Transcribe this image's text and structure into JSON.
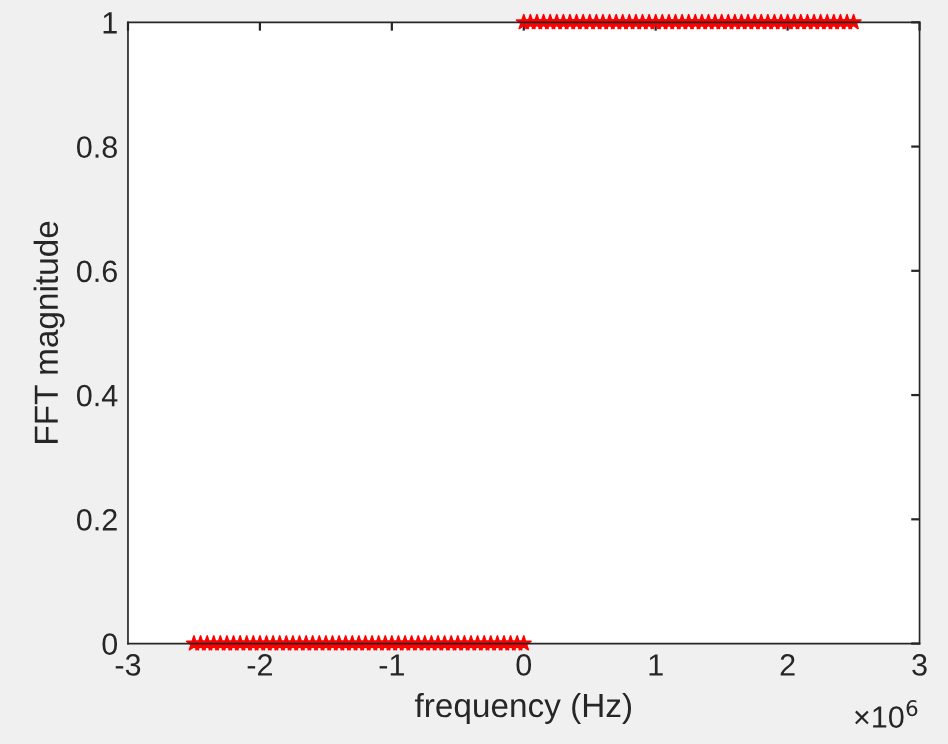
{
  "chart_data": {
    "type": "scatter",
    "xlabel": "frequency (Hz)",
    "ylabel": "FFT magnitude",
    "series": [
      {
        "color": "#ff0000",
        "x": [
          -2.5,
          -2.45,
          -2.4,
          -2.35,
          -2.3,
          -2.25,
          -2.2,
          -2.15,
          -2.1,
          -2.05,
          -2.0,
          -1.95,
          -1.9,
          -1.85,
          -1.8,
          -1.75,
          -1.7,
          -1.65,
          -1.6,
          -1.55,
          -1.5,
          -1.45,
          -1.4,
          -1.35,
          -1.3,
          -1.25,
          -1.2,
          -1.15,
          -1.1,
          -1.05,
          -1.0,
          -0.95,
          -0.9,
          -0.85,
          -0.8,
          -0.75,
          -0.7,
          -0.65,
          -0.6,
          -0.55,
          -0.5,
          -0.45,
          -0.4,
          -0.35,
          -0.3,
          -0.25,
          -0.2,
          -0.15,
          -0.1,
          -0.05,
          0
        ],
        "values": [
          0,
          0,
          0,
          0,
          0,
          0,
          0,
          0,
          0,
          0,
          0,
          0,
          0,
          0,
          0,
          0,
          0,
          0,
          0,
          0,
          0,
          0,
          0,
          0,
          0,
          0,
          0,
          0,
          0,
          0,
          0,
          0,
          0,
          0,
          0,
          0,
          0,
          0,
          0,
          0,
          0,
          0,
          0,
          0,
          0,
          0,
          0,
          0,
          0,
          0,
          0
        ]
      },
      {
        "color": "#ff0000",
        "x": [
          0,
          0.05,
          0.1,
          0.15,
          0.2,
          0.25,
          0.3,
          0.35,
          0.4,
          0.45,
          0.5,
          0.55,
          0.6,
          0.65,
          0.7,
          0.75,
          0.8,
          0.85,
          0.9,
          0.95,
          1.0,
          1.05,
          1.1,
          1.15,
          1.2,
          1.25,
          1.3,
          1.35,
          1.4,
          1.45,
          1.5,
          1.55,
          1.6,
          1.65,
          1.7,
          1.75,
          1.8,
          1.85,
          1.9,
          1.95,
          2.0,
          2.05,
          2.1,
          2.15,
          2.2,
          2.25,
          2.3,
          2.35,
          2.4,
          2.45,
          2.5
        ],
        "values": [
          1,
          1,
          1,
          1,
          1,
          1,
          1,
          1,
          1,
          1,
          1,
          1,
          1,
          1,
          1,
          1,
          1,
          1,
          1,
          1,
          1,
          1,
          1,
          1,
          1,
          1,
          1,
          1,
          1,
          1,
          1,
          1,
          1,
          1,
          1,
          1,
          1,
          1,
          1,
          1,
          1,
          1,
          1,
          1,
          1,
          1,
          1,
          1,
          1,
          1,
          1
        ]
      }
    ],
    "marker": "star",
    "xlim": [
      -3,
      3
    ],
    "xticks": [
      -3,
      -2,
      -1,
      0,
      1,
      2,
      3
    ],
    "ylim": [
      0,
      1
    ],
    "yticks": [
      0,
      0.2,
      0.4,
      0.6,
      0.8,
      1
    ],
    "annotations": [
      "×10$^{6}$"
    ],
    "grid": false
  }
}
